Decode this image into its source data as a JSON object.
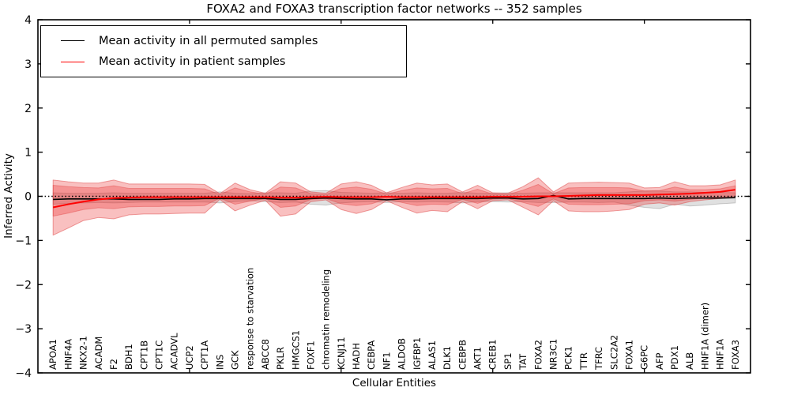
{
  "figure": {
    "title": "FOXA2 and FOXA3 transcription factor networks -- 352 samples",
    "xlabel": "Cellular Entities",
    "ylabel": "Inferred Activity",
    "background": "#ffffff"
  },
  "chart_data": {
    "type": "line",
    "title": "FOXA2 and FOXA3 transcription factor networks -- 352 samples",
    "xlabel": "Cellular Entities",
    "ylabel": "Inferred Activity",
    "ylim": [
      -4,
      4
    ],
    "yticks": [
      4,
      3,
      2,
      1,
      0,
      -1,
      -2,
      -3,
      -4
    ],
    "xtick_positions": [
      9,
      19,
      29,
      39
    ],
    "grid": false,
    "legend_position": "upper left",
    "zero_line": "dotted",
    "categories": [
      "APOA1",
      "HNF4A",
      "NKX2-1",
      "ACADM",
      "F2",
      "BDH1",
      "CPT1B",
      "CPT1C",
      "ACADVL",
      "UCP2",
      "CPT1A",
      "INS",
      "GCK",
      "response to starvation",
      "ABCC8",
      "PKLR",
      "HMGCS1",
      "FOXF1",
      "chromatin remodeling",
      "KCNJ11",
      "HADH",
      "CEBPA",
      "NF1",
      "ALDOB",
      "IGFBP1",
      "ALAS1",
      "DLK1",
      "CEBPB",
      "AKT1",
      "CREB1",
      "SP1",
      "TAT",
      "FOXA2",
      "NR3C1",
      "PCK1",
      "TTR",
      "TFRC",
      "SLC2A2",
      "FOXA1",
      "G6PC",
      "AFP",
      "PDX1",
      "ALB",
      "HNF1A (dimer)",
      "HNF1A",
      "FOXA3"
    ],
    "series": [
      {
        "name": "Mean activity in all permuted samples",
        "color": "#000000",
        "values": [
          -0.07,
          -0.06,
          -0.06,
          -0.06,
          -0.06,
          -0.07,
          -0.07,
          -0.07,
          -0.06,
          -0.06,
          -0.05,
          -0.05,
          -0.05,
          -0.05,
          -0.05,
          -0.07,
          -0.07,
          -0.05,
          -0.04,
          -0.05,
          -0.06,
          -0.06,
          -0.08,
          -0.06,
          -0.06,
          -0.05,
          -0.05,
          -0.05,
          -0.05,
          -0.04,
          -0.04,
          -0.06,
          -0.05,
          0.02,
          -0.06,
          -0.05,
          -0.05,
          -0.05,
          -0.05,
          -0.05,
          -0.04,
          -0.05,
          -0.04,
          -0.04,
          -0.04,
          -0.03
        ]
      },
      {
        "name": "Mean activity in patient samples",
        "color": "#ff0000",
        "values": [
          -0.25,
          -0.18,
          -0.12,
          -0.07,
          -0.04,
          -0.03,
          -0.02,
          -0.02,
          -0.02,
          -0.02,
          -0.02,
          -0.02,
          -0.02,
          -0.02,
          -0.02,
          -0.03,
          -0.03,
          -0.02,
          -0.01,
          -0.02,
          -0.02,
          -0.02,
          -0.01,
          -0.02,
          -0.02,
          -0.02,
          -0.02,
          -0.02,
          -0.02,
          -0.01,
          -0.01,
          -0.01,
          0.0,
          0.0,
          0.01,
          0.02,
          0.03,
          0.03,
          0.03,
          0.03,
          0.04,
          0.05,
          0.06,
          0.08,
          0.1,
          0.15
        ]
      }
    ],
    "bands": [
      {
        "name": "permuted samples spread",
        "color": "rgba(130,130,130,0.25)",
        "edge": "rgba(0,0,0,0.18)",
        "low": [
          -0.18,
          -0.16,
          -0.15,
          -0.14,
          -0.15,
          -0.14,
          -0.13,
          -0.13,
          -0.13,
          -0.13,
          -0.13,
          -0.15,
          -0.12,
          -0.1,
          -0.12,
          -0.14,
          -0.13,
          -0.18,
          -0.2,
          -0.15,
          -0.13,
          -0.12,
          -0.14,
          -0.12,
          -0.13,
          -0.12,
          -0.13,
          -0.15,
          -0.12,
          -0.12,
          -0.13,
          -0.12,
          -0.14,
          -0.14,
          -0.13,
          -0.13,
          -0.14,
          -0.13,
          -0.2,
          -0.25,
          -0.28,
          -0.18,
          -0.22,
          -0.2,
          -0.17,
          -0.15
        ],
        "high": [
          0.08,
          0.07,
          0.07,
          0.07,
          0.08,
          0.07,
          0.07,
          0.07,
          0.07,
          0.07,
          0.07,
          0.1,
          0.07,
          0.06,
          0.08,
          0.08,
          0.07,
          0.12,
          0.13,
          0.09,
          0.08,
          0.07,
          0.08,
          0.07,
          0.08,
          0.07,
          0.07,
          0.09,
          0.07,
          0.07,
          0.08,
          0.07,
          0.08,
          0.08,
          0.08,
          0.08,
          0.08,
          0.08,
          0.1,
          0.12,
          0.12,
          0.1,
          0.1,
          0.09,
          0.09,
          0.08
        ]
      },
      {
        "name": "patient samples spread (outer)",
        "color": "rgba(235,45,45,0.30)",
        "edge": "rgba(220,50,50,0.45)",
        "low": [
          -0.88,
          -0.72,
          -0.55,
          -0.48,
          -0.51,
          -0.42,
          -0.4,
          -0.4,
          -0.39,
          -0.38,
          -0.38,
          -0.07,
          -0.33,
          -0.2,
          -0.09,
          -0.45,
          -0.4,
          -0.12,
          -0.08,
          -0.3,
          -0.39,
          -0.3,
          -0.1,
          -0.25,
          -0.38,
          -0.32,
          -0.35,
          -0.12,
          -0.28,
          -0.1,
          -0.08,
          -0.25,
          -0.42,
          -0.1,
          -0.33,
          -0.35,
          -0.35,
          -0.33,
          -0.3,
          -0.18,
          -0.15,
          -0.2,
          -0.12,
          -0.08,
          -0.05,
          -0.02
        ],
        "high": [
          0.37,
          0.33,
          0.3,
          0.3,
          0.37,
          0.28,
          0.28,
          0.28,
          0.28,
          0.28,
          0.27,
          0.06,
          0.3,
          0.15,
          0.07,
          0.33,
          0.3,
          0.1,
          0.07,
          0.28,
          0.33,
          0.25,
          0.08,
          0.2,
          0.3,
          0.26,
          0.28,
          0.1,
          0.25,
          0.08,
          0.07,
          0.22,
          0.42,
          0.1,
          0.3,
          0.31,
          0.32,
          0.31,
          0.3,
          0.19,
          0.2,
          0.33,
          0.24,
          0.24,
          0.26,
          0.37
        ]
      },
      {
        "name": "patient samples spread (inner)",
        "color": "rgba(235,45,45,0.30)",
        "edge": "rgba(220,50,50,0.35)",
        "low": [
          -0.45,
          -0.38,
          -0.3,
          -0.26,
          -0.28,
          -0.24,
          -0.23,
          -0.23,
          -0.22,
          -0.22,
          -0.21,
          -0.04,
          -0.18,
          -0.11,
          -0.05,
          -0.25,
          -0.22,
          -0.07,
          -0.05,
          -0.17,
          -0.21,
          -0.17,
          -0.06,
          -0.14,
          -0.21,
          -0.18,
          -0.19,
          -0.07,
          -0.16,
          -0.06,
          -0.05,
          -0.14,
          -0.23,
          -0.06,
          -0.18,
          -0.19,
          -0.19,
          -0.18,
          -0.17,
          -0.1,
          -0.08,
          -0.11,
          -0.07,
          -0.04,
          -0.02,
          0.0
        ],
        "high": [
          0.25,
          0.22,
          0.2,
          0.19,
          0.24,
          0.18,
          0.18,
          0.18,
          0.18,
          0.18,
          0.17,
          0.04,
          0.19,
          0.1,
          0.05,
          0.21,
          0.19,
          0.06,
          0.04,
          0.18,
          0.21,
          0.16,
          0.05,
          0.13,
          0.19,
          0.17,
          0.18,
          0.06,
          0.16,
          0.05,
          0.04,
          0.14,
          0.27,
          0.06,
          0.19,
          0.2,
          0.2,
          0.2,
          0.19,
          0.12,
          0.13,
          0.21,
          0.15,
          0.15,
          0.17,
          0.24
        ]
      }
    ]
  }
}
